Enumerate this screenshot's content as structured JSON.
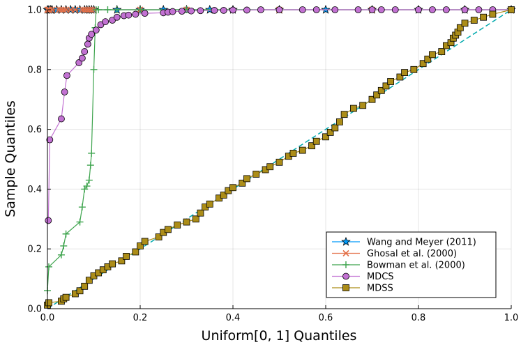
{
  "chart_data": {
    "type": "scatter",
    "xlabel": "Uniform[0, 1] Quantiles",
    "ylabel": "Sample Quantiles",
    "xlim": [
      0,
      1
    ],
    "ylim": [
      0,
      1
    ],
    "xticks": [
      "0.0",
      "0.2",
      "0.4",
      "0.6",
      "0.8",
      "1.0"
    ],
    "yticks": [
      "0.0",
      "0.2",
      "0.4",
      "0.6",
      "0.8",
      "1.0"
    ],
    "grid": true,
    "legend_position": "bottom-right",
    "series": [
      {
        "name": "Wang and Meyer (2011)",
        "color": "#009AFA",
        "marker": "star",
        "line": "solid",
        "points": [
          [
            0.0,
            1.0
          ],
          [
            0.003,
            1.0
          ],
          [
            0.007,
            1.0
          ],
          [
            0.01,
            1.0
          ],
          [
            0.02,
            1.0
          ],
          [
            0.03,
            1.0
          ],
          [
            0.04,
            1.0
          ],
          [
            0.05,
            1.0
          ],
          [
            0.06,
            1.0
          ],
          [
            0.07,
            1.0
          ],
          [
            0.08,
            1.0
          ],
          [
            0.085,
            1.0
          ],
          [
            0.09,
            1.0
          ],
          [
            0.095,
            1.0
          ],
          [
            0.1,
            1.0
          ],
          [
            0.15,
            1.0
          ],
          [
            0.2,
            1.0
          ],
          [
            0.25,
            1.0
          ],
          [
            0.3,
            1.0
          ],
          [
            0.35,
            1.0
          ],
          [
            0.4,
            1.0
          ],
          [
            0.5,
            1.0
          ],
          [
            0.6,
            1.0
          ],
          [
            0.7,
            1.0
          ],
          [
            0.8,
            1.0
          ],
          [
            0.9,
            1.0
          ],
          [
            1.0,
            1.0
          ]
        ]
      },
      {
        "name": "Ghosal et al. (2000)",
        "color": "#E36F47",
        "marker": "x",
        "line": "solid",
        "points": [
          [
            0.0,
            1.0
          ],
          [
            0.002,
            1.0
          ],
          [
            0.005,
            1.0
          ],
          [
            0.01,
            1.0
          ],
          [
            0.025,
            1.0
          ],
          [
            0.03,
            1.0
          ],
          [
            0.035,
            1.0
          ],
          [
            0.04,
            1.0
          ],
          [
            0.05,
            1.0
          ],
          [
            0.06,
            1.0
          ],
          [
            0.075,
            1.0
          ],
          [
            0.08,
            1.0
          ],
          [
            0.085,
            1.0
          ],
          [
            0.09,
            1.0
          ],
          [
            0.095,
            1.0
          ],
          [
            0.1,
            1.0
          ],
          [
            0.2,
            1.0
          ],
          [
            0.3,
            1.0
          ],
          [
            0.5,
            1.0
          ],
          [
            0.7,
            1.0
          ],
          [
            1.0,
            1.0
          ]
        ]
      },
      {
        "name": "Bowman et al. (2000)",
        "color": "#3EA44E",
        "marker": "plus",
        "line": "solid",
        "points": [
          [
            0.0,
            0.06
          ],
          [
            0.003,
            0.14
          ],
          [
            0.03,
            0.18
          ],
          [
            0.035,
            0.21
          ],
          [
            0.04,
            0.25
          ],
          [
            0.07,
            0.29
          ],
          [
            0.075,
            0.34
          ],
          [
            0.08,
            0.4
          ],
          [
            0.085,
            0.41
          ],
          [
            0.09,
            0.43
          ],
          [
            0.093,
            0.48
          ],
          [
            0.095,
            0.52
          ],
          [
            0.1,
            0.8
          ],
          [
            0.103,
            0.94
          ],
          [
            0.105,
            1.0
          ],
          [
            0.11,
            1.0
          ],
          [
            0.13,
            1.0
          ],
          [
            0.15,
            1.0
          ],
          [
            0.2,
            1.0
          ],
          [
            0.3,
            1.0
          ],
          [
            0.5,
            1.0
          ],
          [
            0.7,
            1.0
          ],
          [
            0.9,
            1.0
          ],
          [
            1.0,
            1.0
          ]
        ]
      },
      {
        "name": "MDCS",
        "color": "#C271D2",
        "marker": "circle",
        "line": "solid",
        "points": [
          [
            0.002,
            0.295
          ],
          [
            0.005,
            0.565
          ],
          [
            0.03,
            0.635
          ],
          [
            0.037,
            0.725
          ],
          [
            0.042,
            0.78
          ],
          [
            0.068,
            0.823
          ],
          [
            0.075,
            0.838
          ],
          [
            0.08,
            0.86
          ],
          [
            0.087,
            0.885
          ],
          [
            0.09,
            0.905
          ],
          [
            0.095,
            0.918
          ],
          [
            0.105,
            0.932
          ],
          [
            0.115,
            0.95
          ],
          [
            0.125,
            0.96
          ],
          [
            0.14,
            0.965
          ],
          [
            0.15,
            0.975
          ],
          [
            0.165,
            0.98
          ],
          [
            0.175,
            0.982
          ],
          [
            0.19,
            0.985
          ],
          [
            0.21,
            0.988
          ],
          [
            0.25,
            0.99
          ],
          [
            0.26,
            0.992
          ],
          [
            0.27,
            0.994
          ],
          [
            0.29,
            0.995
          ],
          [
            0.31,
            0.996
          ],
          [
            0.33,
            0.997
          ],
          [
            0.36,
            0.998
          ],
          [
            0.38,
            0.998
          ],
          [
            0.4,
            0.999
          ],
          [
            0.43,
            0.999
          ],
          [
            0.46,
            1.0
          ],
          [
            0.5,
            1.0
          ],
          [
            0.55,
            1.0
          ],
          [
            0.58,
            1.0
          ],
          [
            0.62,
            1.0
          ],
          [
            0.67,
            1.0
          ],
          [
            0.7,
            1.0
          ],
          [
            0.72,
            1.0
          ],
          [
            0.75,
            1.0
          ],
          [
            0.8,
            1.0
          ],
          [
            0.83,
            1.0
          ],
          [
            0.86,
            1.0
          ],
          [
            0.9,
            1.0
          ],
          [
            0.93,
            1.0
          ],
          [
            0.96,
            1.0
          ],
          [
            1.0,
            1.0
          ]
        ]
      },
      {
        "name": "MDSS",
        "color": "#AC8D18",
        "marker": "square",
        "line": "solid",
        "points": [
          [
            0.0,
            0.012
          ],
          [
            0.003,
            0.02
          ],
          [
            0.03,
            0.025
          ],
          [
            0.035,
            0.033
          ],
          [
            0.04,
            0.038
          ],
          [
            0.06,
            0.05
          ],
          [
            0.07,
            0.06
          ],
          [
            0.08,
            0.075
          ],
          [
            0.09,
            0.095
          ],
          [
            0.1,
            0.11
          ],
          [
            0.11,
            0.12
          ],
          [
            0.12,
            0.13
          ],
          [
            0.13,
            0.14
          ],
          [
            0.14,
            0.15
          ],
          [
            0.16,
            0.16
          ],
          [
            0.17,
            0.175
          ],
          [
            0.19,
            0.19
          ],
          [
            0.2,
            0.21
          ],
          [
            0.21,
            0.225
          ],
          [
            0.24,
            0.24
          ],
          [
            0.25,
            0.255
          ],
          [
            0.26,
            0.265
          ],
          [
            0.28,
            0.28
          ],
          [
            0.3,
            0.29
          ],
          [
            0.32,
            0.3
          ],
          [
            0.33,
            0.32
          ],
          [
            0.34,
            0.34
          ],
          [
            0.35,
            0.35
          ],
          [
            0.37,
            0.37
          ],
          [
            0.38,
            0.38
          ],
          [
            0.39,
            0.395
          ],
          [
            0.4,
            0.405
          ],
          [
            0.42,
            0.42
          ],
          [
            0.43,
            0.435
          ],
          [
            0.45,
            0.45
          ],
          [
            0.47,
            0.465
          ],
          [
            0.48,
            0.475
          ],
          [
            0.5,
            0.49
          ],
          [
            0.52,
            0.51
          ],
          [
            0.53,
            0.52
          ],
          [
            0.55,
            0.53
          ],
          [
            0.57,
            0.545
          ],
          [
            0.58,
            0.56
          ],
          [
            0.6,
            0.575
          ],
          [
            0.61,
            0.59
          ],
          [
            0.62,
            0.605
          ],
          [
            0.63,
            0.625
          ],
          [
            0.64,
            0.65
          ],
          [
            0.66,
            0.67
          ],
          [
            0.68,
            0.68
          ],
          [
            0.7,
            0.7
          ],
          [
            0.71,
            0.715
          ],
          [
            0.72,
            0.73
          ],
          [
            0.73,
            0.745
          ],
          [
            0.74,
            0.76
          ],
          [
            0.76,
            0.775
          ],
          [
            0.77,
            0.79
          ],
          [
            0.79,
            0.8
          ],
          [
            0.81,
            0.82
          ],
          [
            0.82,
            0.835
          ],
          [
            0.83,
            0.85
          ],
          [
            0.85,
            0.86
          ],
          [
            0.86,
            0.88
          ],
          [
            0.87,
            0.89
          ],
          [
            0.875,
            0.905
          ],
          [
            0.88,
            0.915
          ],
          [
            0.885,
            0.925
          ],
          [
            0.89,
            0.94
          ],
          [
            0.9,
            0.955
          ],
          [
            0.92,
            0.965
          ],
          [
            0.94,
            0.975
          ],
          [
            0.96,
            0.985
          ],
          [
            1.0,
            1.0
          ]
        ]
      }
    ],
    "reference_line": {
      "color": "#00A9AD",
      "style": "dashed",
      "points": [
        [
          0,
          0
        ],
        [
          1,
          1
        ]
      ]
    }
  }
}
